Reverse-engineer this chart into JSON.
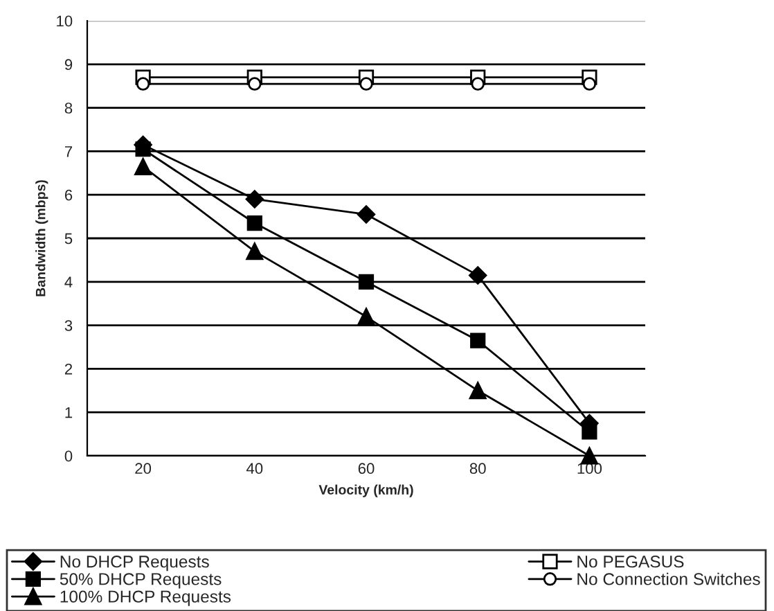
{
  "chart_data": {
    "type": "line",
    "xlabel": "Velocity (km/h)",
    "ylabel": "Bandwidth (mbps)",
    "categories": [
      "20",
      "40",
      "60",
      "80",
      "100"
    ],
    "series": [
      {
        "name": "No DHCP Requests",
        "color": "#000000",
        "marker": "diamond",
        "values": [
          7.15,
          5.9,
          5.55,
          4.15,
          0.75
        ]
      },
      {
        "name": "50% DHCP Requests",
        "color": "#000000",
        "marker": "square",
        "values": [
          7.05,
          5.35,
          4.0,
          2.65,
          0.55
        ]
      },
      {
        "name": "100% DHCP Requests",
        "color": "#000000",
        "marker": "triangle",
        "values": [
          6.65,
          4.7,
          3.2,
          1.5,
          0.0
        ]
      },
      {
        "name": "No PEGASUS",
        "color": "#000000",
        "marker": "square",
        "colors": [
          "#ffffff",
          "#ffffff",
          "#ffffff",
          "#ffffff",
          "#ffffff"
        ],
        "values": [
          8.7,
          8.7,
          8.7,
          8.7,
          8.7
        ]
      },
      {
        "name": "No Connection Switches",
        "color": "#000000",
        "marker": "circle",
        "colors": [
          "#ffffff",
          "#ffffff",
          "#ffffff",
          "#ffffff",
          "#ffffff"
        ],
        "values": [
          8.55,
          8.55,
          8.55,
          8.55,
          8.55
        ]
      }
    ],
    "ylim": [
      0,
      10
    ],
    "yticks": [
      0,
      1,
      2,
      3,
      4,
      5,
      6,
      7,
      8,
      9,
      10
    ],
    "grid": "y",
    "legend": "bottom",
    "line_style": "solid"
  }
}
